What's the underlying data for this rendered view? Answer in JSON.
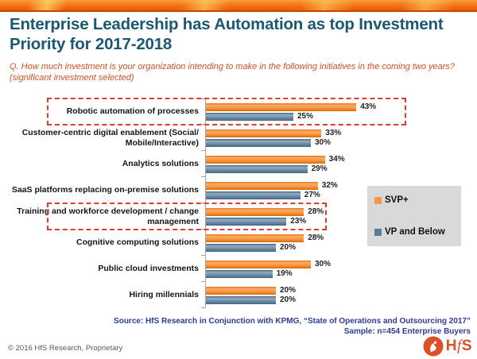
{
  "page": {
    "title": "Enterprise Leadership has Automation as top Investment Priority for 2017-2018",
    "question": "Q. How much investment is your organization intending to make in the following initiatives in the coming two years? (significant investment selected)",
    "source_line1": "Source: HfS Research in Conjunction with KPMG, “State of Operations and Outsourcing 2017”",
    "source_line2": "Sample: n=454 Enterprise Buyers",
    "footer": "© 2016 HfS Research, Proprietary",
    "logo_text": "HfS"
  },
  "chart_data": {
    "type": "bar",
    "orientation": "horizontal",
    "title": "",
    "categories": [
      "Robotic automation of processes",
      "Customer-centric digital enablement (Social/ Mobile/Interactive)",
      "Analytics solutions",
      "SaaS platforms replacing on-premise solutions",
      "Training and workforce development / change management",
      "Cognitive computing solutions",
      "Public cloud investments",
      "Hiring millennials"
    ],
    "series": [
      {
        "name": "SVP+",
        "color": "#F79646",
        "values": [
          43,
          33,
          34,
          32,
          28,
          28,
          30,
          20
        ]
      },
      {
        "name": "VP and Below",
        "color": "#5C7B9B",
        "values": [
          25,
          30,
          29,
          27,
          23,
          20,
          19,
          20
        ]
      }
    ],
    "value_suffix": "%",
    "xlim": [
      0,
      50
    ],
    "grid": false,
    "legend_position": "middle-right",
    "highlighted_category_indexes": [
      0,
      4
    ],
    "highlight_color": "#E8392E"
  },
  "colors": {
    "accent_orange": "#F79646",
    "accent_blue": "#5C7B9B",
    "title_text": "#1B5872",
    "question_text": "#D84E26",
    "source_text": "#2B3A9E",
    "banner_orange": "#EF6F12",
    "logo_orange": "#DE4F28"
  }
}
